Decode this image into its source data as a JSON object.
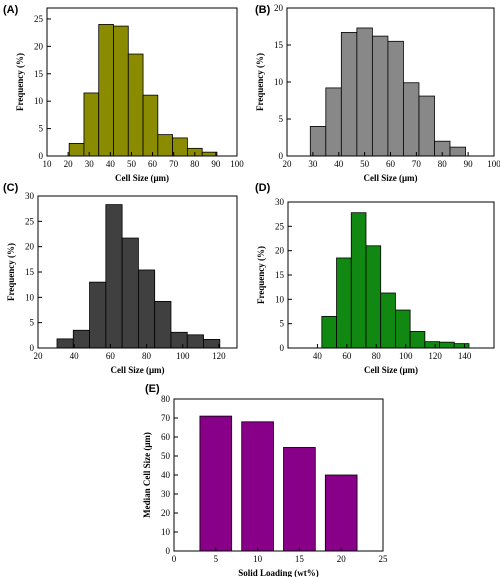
{
  "chart_data": [
    {
      "id": "A",
      "panel_label": "(A)",
      "type": "bar",
      "color": "#8b8b00",
      "xlabel": "Cell Size (μm)",
      "ylabel": "Frequency (%)",
      "xlim": [
        10,
        100
      ],
      "ylim": [
        0,
        27
      ],
      "xticks": [
        10,
        20,
        30,
        40,
        50,
        60,
        70,
        80,
        90,
        100
      ],
      "yticks": [
        0,
        5,
        10,
        15,
        20,
        25
      ],
      "bin_width": 7,
      "bins": [
        {
          "x": 24,
          "y": 2.3
        },
        {
          "x": 31,
          "y": 11.5
        },
        {
          "x": 38,
          "y": 24.0
        },
        {
          "x": 45,
          "y": 23.7
        },
        {
          "x": 52,
          "y": 18.6
        },
        {
          "x": 59,
          "y": 11.1
        },
        {
          "x": 66,
          "y": 3.9
        },
        {
          "x": 73,
          "y": 3.3
        },
        {
          "x": 80,
          "y": 1.4
        },
        {
          "x": 87,
          "y": 0.7
        }
      ]
    },
    {
      "id": "B",
      "panel_label": "(B)",
      "type": "bar",
      "color": "#888888",
      "xlabel": "Cell Size (μm)",
      "ylabel": "Frequency (%)",
      "xlim": [
        20,
        100
      ],
      "ylim": [
        0,
        20
      ],
      "xticks": [
        20,
        30,
        40,
        50,
        60,
        70,
        80,
        90,
        100
      ],
      "yticks": [
        0,
        5,
        10,
        15,
        20
      ],
      "bin_width": 6,
      "bins": [
        {
          "x": 32,
          "y": 4.0
        },
        {
          "x": 38,
          "y": 9.2
        },
        {
          "x": 44,
          "y": 16.7
        },
        {
          "x": 50,
          "y": 17.3
        },
        {
          "x": 56,
          "y": 16.2
        },
        {
          "x": 62,
          "y": 15.5
        },
        {
          "x": 68,
          "y": 9.9
        },
        {
          "x": 74,
          "y": 8.1
        },
        {
          "x": 80,
          "y": 2.0
        },
        {
          "x": 86,
          "y": 1.2
        }
      ]
    },
    {
      "id": "C",
      "panel_label": "(C)",
      "type": "bar",
      "color": "#404040",
      "xlabel": "Cell Size (μm)",
      "ylabel": "Frequency (%)",
      "xlim": [
        20,
        130
      ],
      "ylim": [
        0,
        30
      ],
      "xticks": [
        20,
        40,
        60,
        80,
        100,
        120
      ],
      "yticks": [
        0,
        5,
        10,
        15,
        20,
        25,
        30
      ],
      "bin_width": 9,
      "bins": [
        {
          "x": 35,
          "y": 1.8
        },
        {
          "x": 44,
          "y": 3.5
        },
        {
          "x": 53,
          "y": 13.0
        },
        {
          "x": 62,
          "y": 28.3
        },
        {
          "x": 71,
          "y": 21.7
        },
        {
          "x": 80,
          "y": 15.4
        },
        {
          "x": 89,
          "y": 9.2
        },
        {
          "x": 98,
          "y": 3.1
        },
        {
          "x": 107,
          "y": 2.6
        },
        {
          "x": 116,
          "y": 1.7
        }
      ]
    },
    {
      "id": "D",
      "panel_label": "(D)",
      "type": "bar",
      "color": "#118811",
      "xlabel": "Cell Size (μm)",
      "ylabel": "Frequency (%)",
      "xlim": [
        20,
        160
      ],
      "ylim": [
        0,
        30
      ],
      "xticks": [
        40,
        60,
        80,
        100,
        120,
        140
      ],
      "yticks": [
        0,
        5,
        10,
        15,
        20,
        25,
        30
      ],
      "bin_width": 10,
      "bins": [
        {
          "x": 48,
          "y": 6.5
        },
        {
          "x": 58,
          "y": 18.5
        },
        {
          "x": 68,
          "y": 27.8
        },
        {
          "x": 78,
          "y": 21.0
        },
        {
          "x": 88,
          "y": 11.3
        },
        {
          "x": 98,
          "y": 7.8
        },
        {
          "x": 108,
          "y": 3.4
        },
        {
          "x": 118,
          "y": 1.3
        },
        {
          "x": 128,
          "y": 1.2
        },
        {
          "x": 138,
          "y": 0.9
        }
      ]
    },
    {
      "id": "E",
      "panel_label": "(E)",
      "type": "bar",
      "color": "#880088",
      "xlabel": "Solid Loading (wt%)",
      "ylabel": "Median Cell Size (μm)",
      "xlim": [
        0,
        25
      ],
      "ylim": [
        0,
        80
      ],
      "xticks": [
        0,
        5,
        10,
        15,
        20,
        25
      ],
      "yticks": [
        0,
        10,
        20,
        30,
        40,
        50,
        60,
        70,
        80
      ],
      "bin_width": 3.8,
      "bins": [
        {
          "x": 5,
          "y": 71.0
        },
        {
          "x": 10,
          "y": 68.0
        },
        {
          "x": 15,
          "y": 54.5
        },
        {
          "x": 20,
          "y": 40.0
        }
      ]
    }
  ]
}
